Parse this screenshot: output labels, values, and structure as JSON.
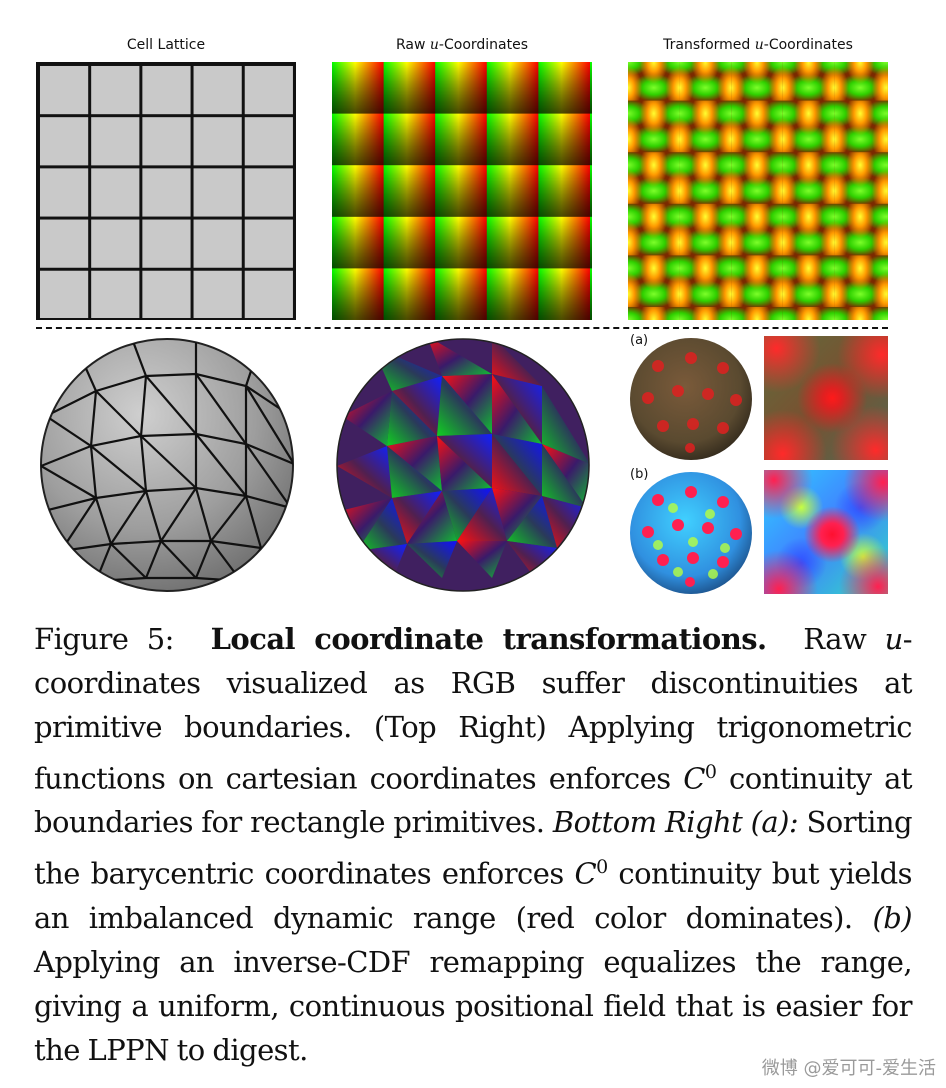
{
  "top_row": {
    "titles": {
      "lattice_title": "Cell Lattice",
      "raw_title_pre": "Raw ",
      "raw_title_var": "u",
      "raw_title_post": "-Coordinates",
      "transformed_title_pre": "Transformed ",
      "transformed_title_var": "u",
      "transformed_title_post": "-Coordinates"
    }
  },
  "bottom_row": {
    "label_a": "(a)",
    "label_b": "(b)"
  },
  "caption": {
    "figure_label": "Figure 5:",
    "bold_title": "Local coordinate transformations.",
    "s1_pre": "Raw ",
    "s1_var": "u",
    "s1_post": "-coordinates visualized as RGB suffer discontinuities at primitive boundaries. (Top Right) Applying trigonometric functions on cartesian coordinates enforces ",
    "c_var": "C",
    "c_sup": "0",
    "s2": " continuity at boundaries for rectangle primitives. ",
    "italic_a": "Bottom Right (a):",
    "s3": " Sorting the barycentric coordinates enforces ",
    "s4": " continuity but yields an imbalanced dynamic range (red color dominates). ",
    "italic_b": "(b)",
    "s5": " Applying an inverse-CDF remapping equalizes the range, giving a uniform, continuous positional field that is easier for the LPPN to digest."
  },
  "watermark": "微博 @爱可可-爱生活",
  "colors": {
    "lattice_fill": "#c9c9c9",
    "lattice_line": "#111111",
    "sphere_gray": "#9a9a9a"
  }
}
